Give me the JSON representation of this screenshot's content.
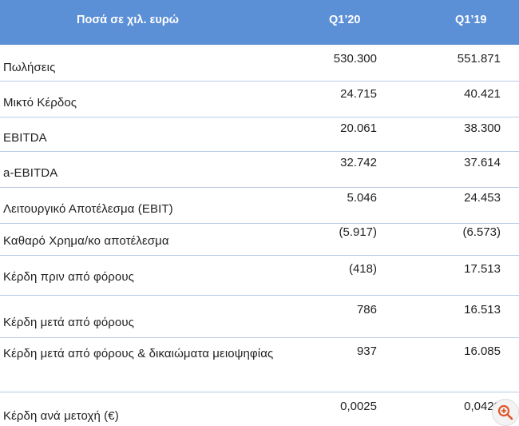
{
  "header": {
    "col_label": "Ποσά σε χιλ. ευρώ",
    "col_q120": "Q1’20",
    "col_q119": "Q1’19"
  },
  "rows": [
    {
      "label": "Πωλήσεις",
      "q120": "530.300",
      "q119": "551.871"
    },
    {
      "label": "Μικτό Κέρδος",
      "q120": "24.715",
      "q119": "40.421"
    },
    {
      "label": "EBITDA",
      "q120": "20.061",
      "q119": "38.300"
    },
    {
      "label": "a-EBITDA",
      "q120": "32.742",
      "q119": "37.614"
    },
    {
      "label": "Λειτουργικό Αποτέλεσμα (EBIT)",
      "q120": "5.046",
      "q119": "24.453"
    },
    {
      "label": "Καθαρό Χρημα/κο αποτέλεσμα",
      "q120": "(5.917)",
      "q119": "(6.573)"
    },
    {
      "label": "Κέρδη πριν από φόρους",
      "q120": "(418)",
      "q119": "17.513"
    },
    {
      "label": "Κέρδη μετά από φόρους",
      "q120": "786",
      "q119": "16.513"
    },
    {
      "label": "Κέρδη μετά από φόρους & δικαιώματα μειοψηφίας",
      "q120": "937",
      "q119": "16.085"
    },
    {
      "label": "Κέρδη ανά μετοχή (€)",
      "q120": "0,0025",
      "q119": "0,0429"
    }
  ],
  "icons": {
    "zoom": "zoom-in-icon"
  }
}
